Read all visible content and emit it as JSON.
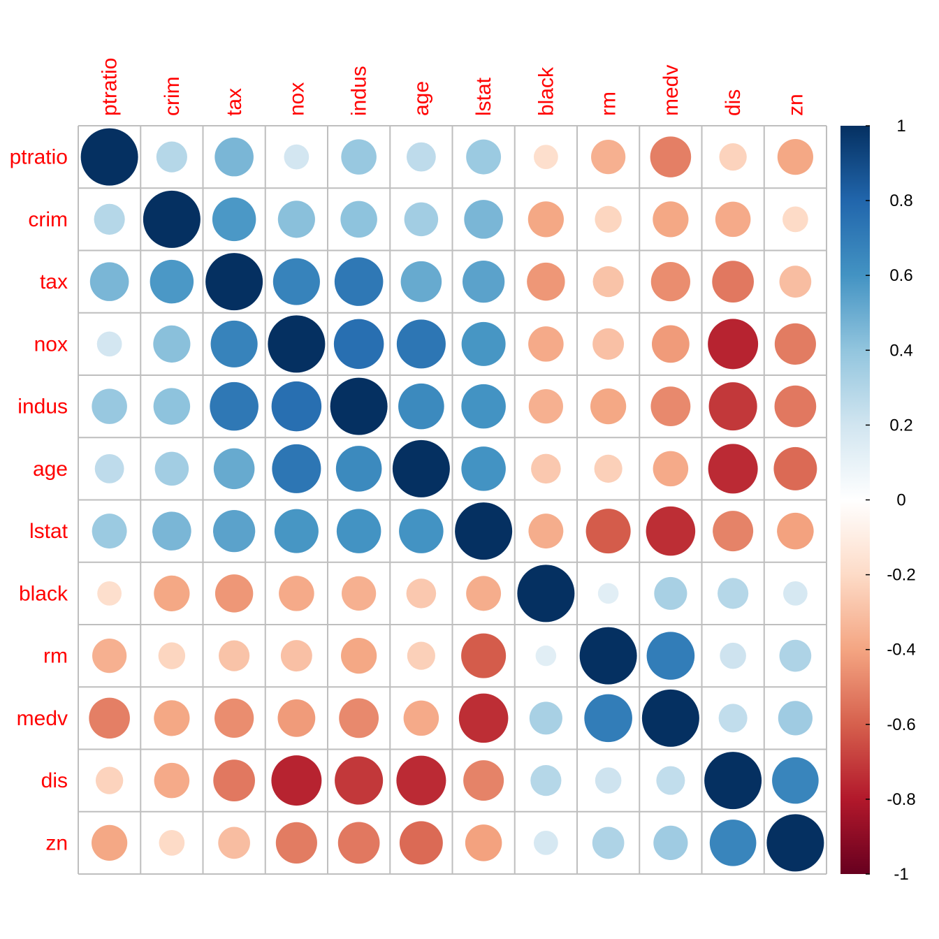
{
  "chart_data": {
    "type": "heatmap",
    "style": "circle correlation matrix",
    "variables": [
      "ptratio",
      "crim",
      "tax",
      "nox",
      "indus",
      "age",
      "lstat",
      "black",
      "rm",
      "medv",
      "dis",
      "zn"
    ],
    "matrix": [
      [
        1.0,
        0.29,
        0.46,
        0.19,
        0.38,
        0.26,
        0.37,
        -0.18,
        -0.36,
        -0.51,
        -0.23,
        -0.39
      ],
      [
        0.29,
        1.0,
        0.58,
        0.42,
        0.41,
        0.35,
        0.46,
        -0.39,
        -0.22,
        -0.39,
        -0.38,
        -0.2
      ],
      [
        0.46,
        0.58,
        1.0,
        0.67,
        0.72,
        0.51,
        0.54,
        -0.44,
        -0.29,
        -0.47,
        -0.53,
        -0.31
      ],
      [
        0.19,
        0.42,
        0.67,
        1.0,
        0.76,
        0.73,
        0.59,
        -0.38,
        -0.3,
        -0.43,
        -0.77,
        -0.52
      ],
      [
        0.38,
        0.41,
        0.72,
        0.76,
        1.0,
        0.64,
        0.6,
        -0.36,
        -0.39,
        -0.48,
        -0.71,
        -0.53
      ],
      [
        0.26,
        0.35,
        0.51,
        0.73,
        0.64,
        1.0,
        0.6,
        -0.27,
        -0.24,
        -0.38,
        -0.75,
        -0.57
      ],
      [
        0.37,
        0.46,
        0.54,
        0.59,
        0.6,
        0.6,
        1.0,
        -0.37,
        -0.61,
        -0.74,
        -0.5,
        -0.41
      ],
      [
        -0.18,
        -0.39,
        -0.44,
        -0.38,
        -0.36,
        -0.27,
        -0.37,
        1.0,
        0.13,
        0.33,
        0.29,
        0.18
      ],
      [
        -0.36,
        -0.22,
        -0.29,
        -0.3,
        -0.39,
        -0.24,
        -0.61,
        0.13,
        1.0,
        0.7,
        0.21,
        0.31
      ],
      [
        -0.51,
        -0.39,
        -0.47,
        -0.43,
        -0.48,
        -0.38,
        -0.74,
        0.33,
        0.7,
        1.0,
        0.25,
        0.36
      ],
      [
        -0.23,
        -0.38,
        -0.53,
        -0.77,
        -0.71,
        -0.75,
        -0.5,
        0.29,
        0.21,
        0.25,
        1.0,
        0.66
      ],
      [
        -0.39,
        -0.2,
        -0.31,
        -0.52,
        -0.53,
        -0.57,
        -0.41,
        0.18,
        0.31,
        0.36,
        0.66,
        1.0
      ]
    ],
    "colorbar": {
      "ticks": [
        "1",
        "0.8",
        "0.6",
        "0.4",
        "0.2",
        "0",
        "-0.2",
        "-0.4",
        "-0.6",
        "-0.8",
        "-1"
      ],
      "range": [
        -1,
        1
      ]
    },
    "palette": [
      "#67001F",
      "#B2182B",
      "#D6604D",
      "#F4A582",
      "#FDDBC7",
      "#FFFFFF",
      "#D1E5F0",
      "#92C5DE",
      "#4393C3",
      "#2166AC",
      "#053061"
    ],
    "label_color": "#FF0000",
    "grid_color": "#BEBEBE"
  }
}
